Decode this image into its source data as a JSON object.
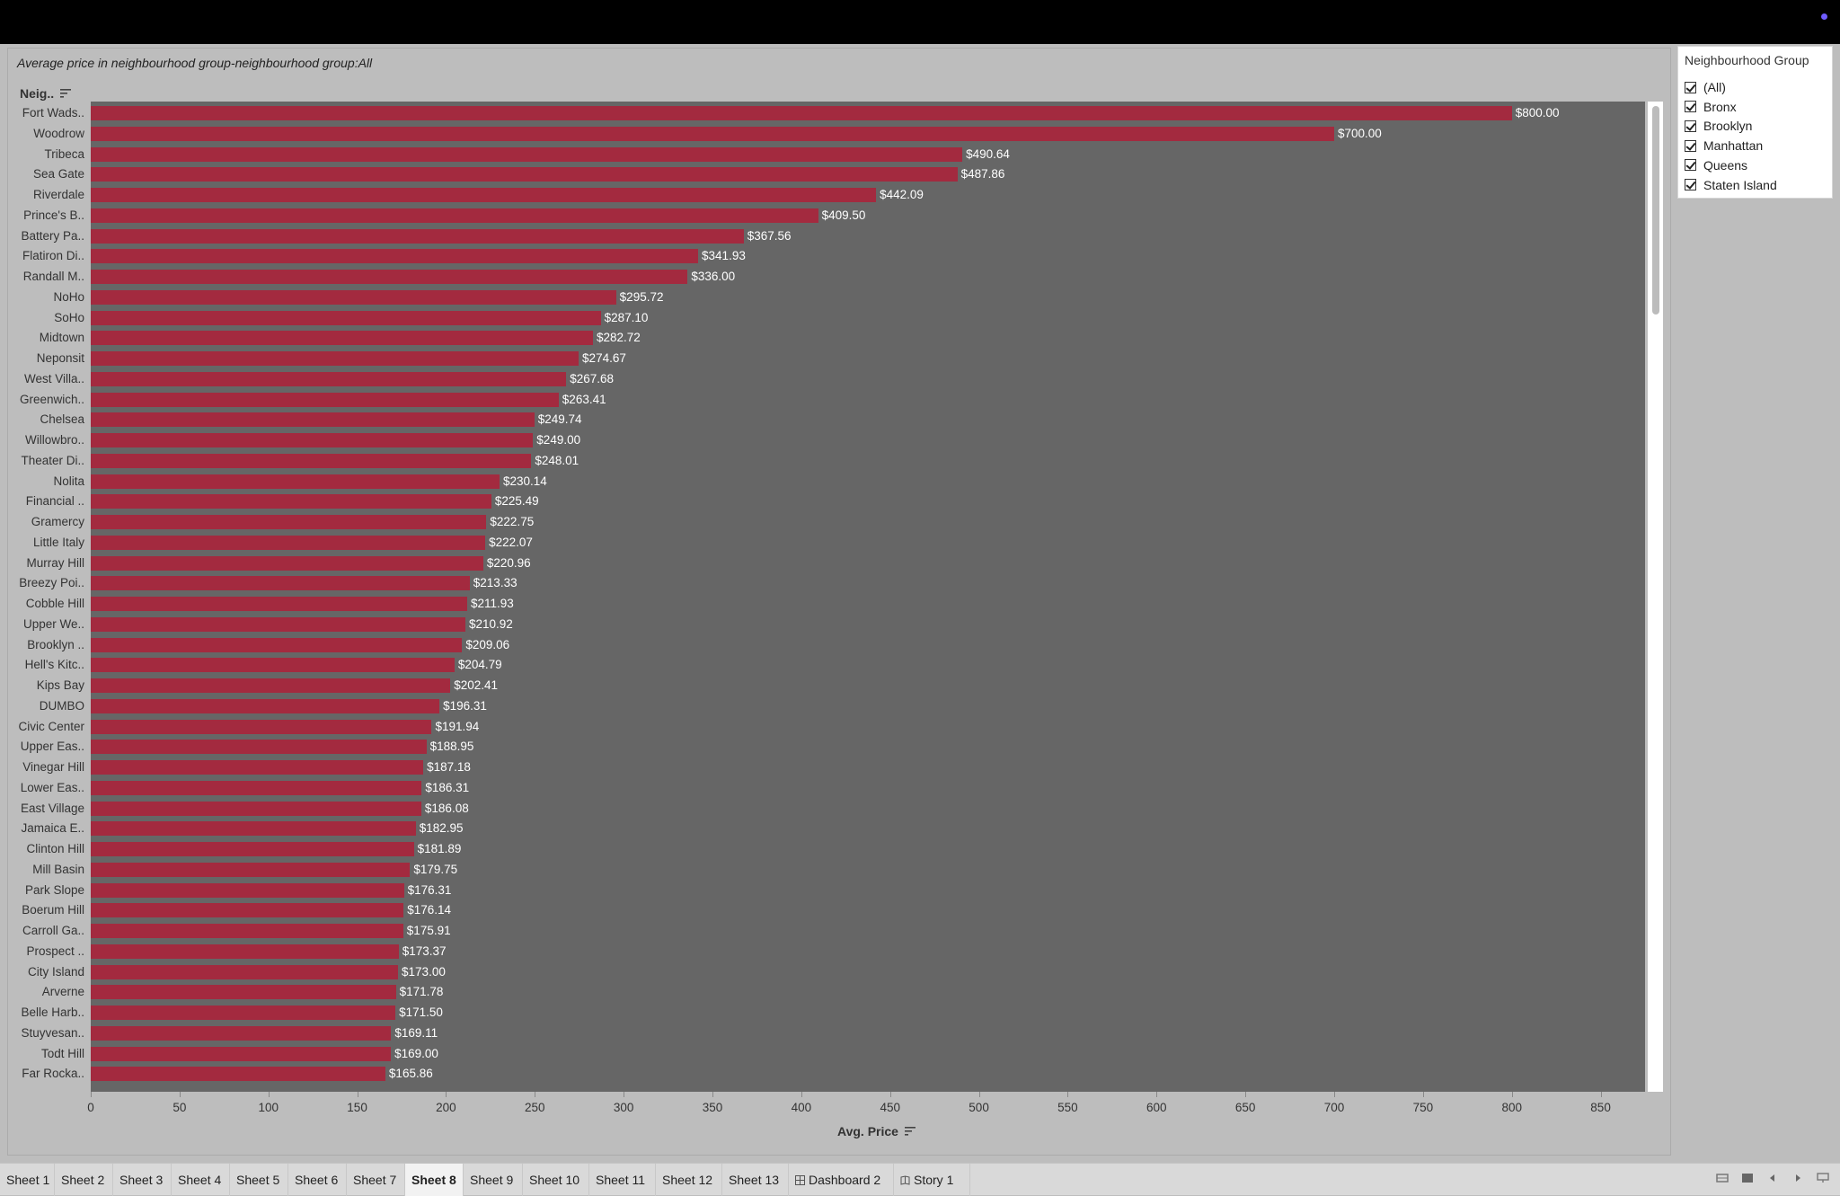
{
  "window": {
    "title_bar": ""
  },
  "worksheet": {
    "title": "Average price in neighbourhood group-neighbourhood group:All",
    "row_header": "Neig..",
    "xaxis_title": "Avg. Price"
  },
  "legend": {
    "title": "Neighbourhood Group",
    "items": [
      "(All)",
      "Bronx",
      "Brooklyn",
      "Manhattan",
      "Queens",
      "Staten Island"
    ]
  },
  "tabs": [
    {
      "label": "Sheet 1",
      "icon": ""
    },
    {
      "label": "Sheet 2",
      "icon": ""
    },
    {
      "label": "Sheet 3",
      "icon": ""
    },
    {
      "label": "Sheet 4",
      "icon": ""
    },
    {
      "label": "Sheet 5",
      "icon": ""
    },
    {
      "label": "Sheet 6",
      "icon": ""
    },
    {
      "label": "Sheet 7",
      "icon": ""
    },
    {
      "label": "Sheet 8",
      "icon": "",
      "active": true
    },
    {
      "label": "Sheet 9",
      "icon": ""
    },
    {
      "label": "Sheet 10",
      "icon": ""
    },
    {
      "label": "Sheet 11",
      "icon": ""
    },
    {
      "label": "Sheet 12",
      "icon": ""
    },
    {
      "label": "Sheet 13",
      "icon": ""
    },
    {
      "label": "Dashboard 2",
      "icon": "dashboard-icon"
    },
    {
      "label": "Story 1",
      "icon": "story-icon"
    }
  ],
  "colors": {
    "bar": "#a32a3f",
    "plot_background": "#666666",
    "page_background": "#bdbdbd"
  },
  "chart_data": {
    "type": "bar",
    "orientation": "horizontal",
    "title": "Average price in neighbourhood group-neighbourhood group:All",
    "xlabel": "Avg. Price",
    "ylabel": "Neig..",
    "xlim": [
      0,
      875
    ],
    "xticks": [
      0,
      50,
      100,
      150,
      200,
      250,
      300,
      350,
      400,
      450,
      500,
      550,
      600,
      650,
      700,
      750,
      800,
      850
    ],
    "grid": false,
    "legend_position": "right",
    "categories": [
      "Fort Wads..",
      "Woodrow",
      "Tribeca",
      "Sea Gate",
      "Riverdale",
      "Prince's B..",
      "Battery Pa..",
      "Flatiron Di..",
      "Randall M..",
      "NoHo",
      "SoHo",
      "Midtown",
      "Neponsit",
      "West Villa..",
      "Greenwich..",
      "Chelsea",
      "Willowbro..",
      "Theater Di..",
      "Nolita",
      "Financial ..",
      "Gramercy",
      "Little Italy",
      "Murray Hill",
      "Breezy Poi..",
      "Cobble Hill",
      "Upper We..",
      "Brooklyn ..",
      "Hell's Kitc..",
      "Kips Bay",
      "DUMBO",
      "Civic Center",
      "Upper Eas..",
      "Vinegar Hill",
      "Lower Eas..",
      "East Village",
      "Jamaica E..",
      "Clinton Hill",
      "Mill Basin",
      "Park Slope",
      "Boerum Hill",
      "Carroll Ga..",
      "Prospect ..",
      "City Island",
      "Arverne",
      "Belle Harb..",
      "Stuyvesan..",
      "Todt Hill",
      "Far Rocka.."
    ],
    "values": [
      800.0,
      700.0,
      490.64,
      487.86,
      442.09,
      409.5,
      367.56,
      341.93,
      336.0,
      295.72,
      287.1,
      282.72,
      274.67,
      267.68,
      263.41,
      249.74,
      249.0,
      248.01,
      230.14,
      225.49,
      222.75,
      222.07,
      220.96,
      213.33,
      211.93,
      210.92,
      209.06,
      204.79,
      202.41,
      196.31,
      191.94,
      188.95,
      187.18,
      186.31,
      186.08,
      182.95,
      181.89,
      179.75,
      176.31,
      176.14,
      175.91,
      173.37,
      173.0,
      171.78,
      171.5,
      169.11,
      169.0,
      165.86
    ],
    "value_labels": [
      "$800.00",
      "$700.00",
      "$490.64",
      "$487.86",
      "$442.09",
      "$409.50",
      "$367.56",
      "$341.93",
      "$336.00",
      "$295.72",
      "$287.10",
      "$282.72",
      "$274.67",
      "$267.68",
      "$263.41",
      "$249.74",
      "$249.00",
      "$248.01",
      "$230.14",
      "$225.49",
      "$222.75",
      "$222.07",
      "$220.96",
      "$213.33",
      "$211.93",
      "$210.92",
      "$209.06",
      "$204.79",
      "$202.41",
      "$196.31",
      "$191.94",
      "$188.95",
      "$187.18",
      "$186.31",
      "$186.08",
      "$182.95",
      "$181.89",
      "$179.75",
      "$176.31",
      "$176.14",
      "$175.91",
      "$173.37",
      "$173.00",
      "$171.78",
      "$171.50",
      "$169.11",
      "$169.00",
      "$165.86"
    ]
  }
}
